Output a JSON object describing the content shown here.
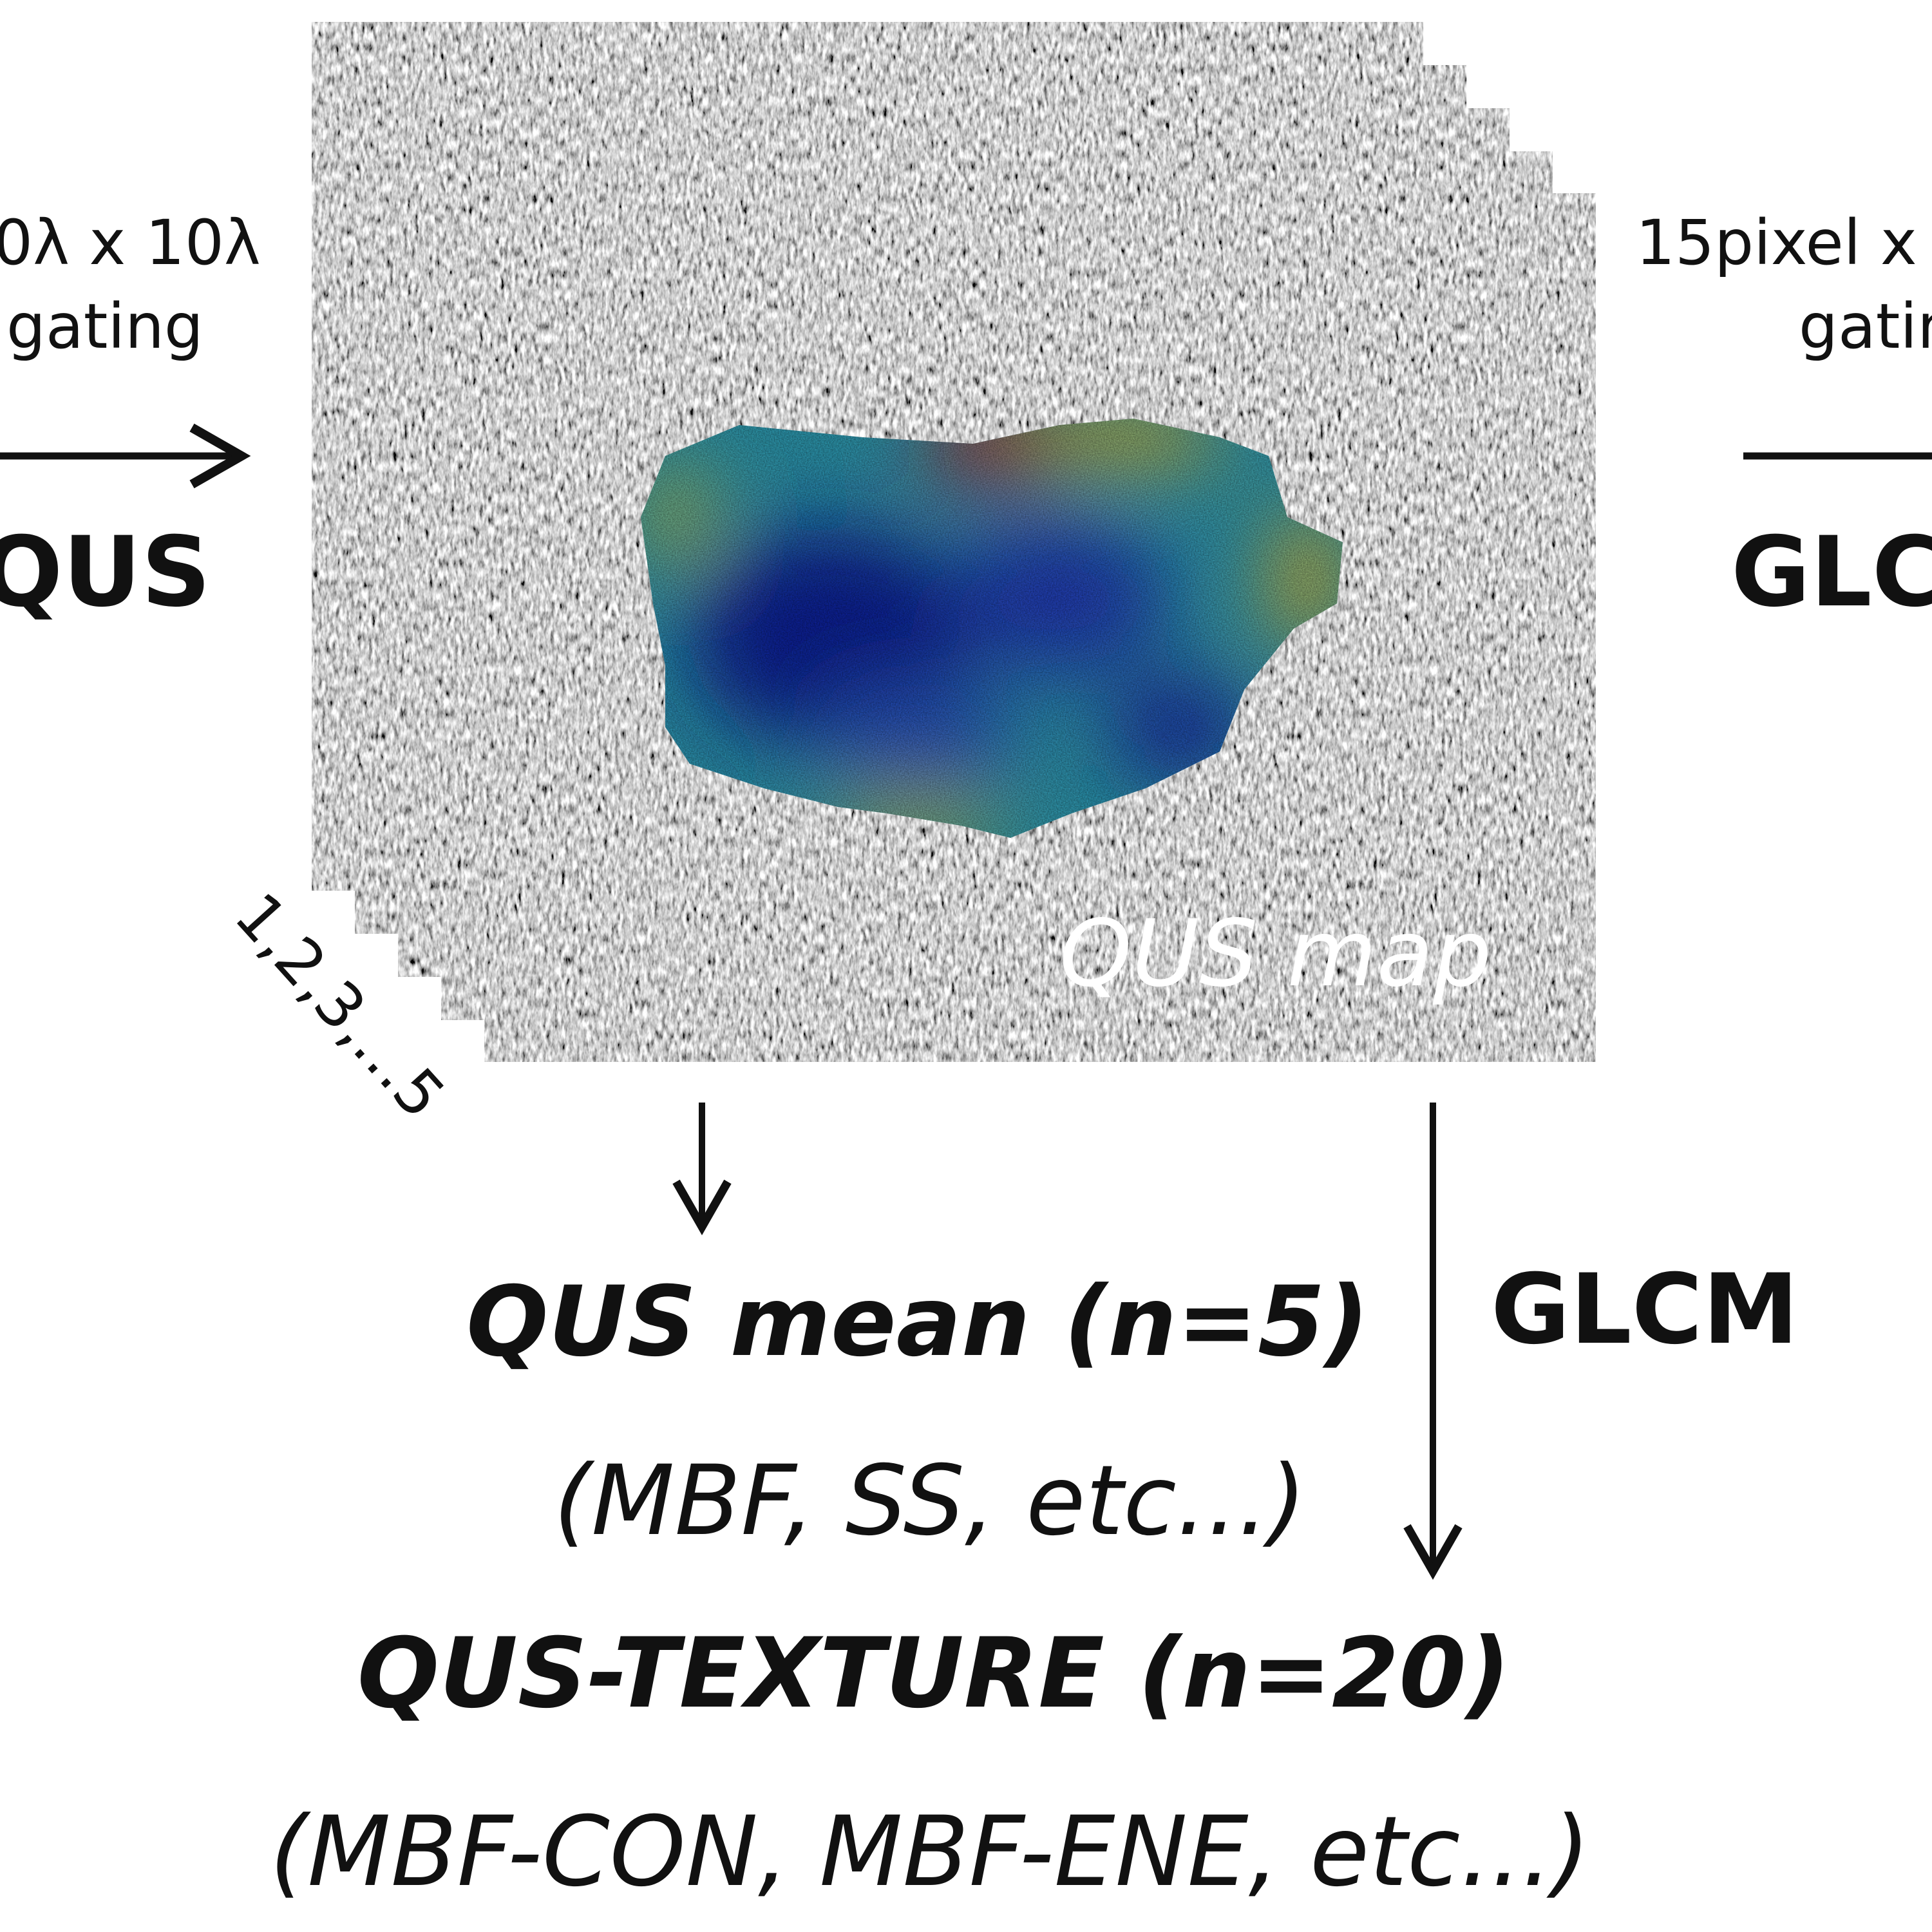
{
  "left_step": {
    "lines": [
      "0λ x 10λ",
      "gating"
    ],
    "label": "QUS"
  },
  "right_step": {
    "lines": [
      "15pixel x 1",
      "gatin"
    ],
    "label": "GLC"
  },
  "image": {
    "stack_label": "1,2,3,...5",
    "map_label": "QUS map"
  },
  "branch_label": "GLCM",
  "outputs": [
    {
      "title": "QUS mean (n=5)",
      "examples": "(MBF, SS, etc...)"
    },
    {
      "title": "QUS-TEXTURE (n=20)",
      "examples": "(MBF-CON, MBF-ENE, etc...)"
    }
  ]
}
